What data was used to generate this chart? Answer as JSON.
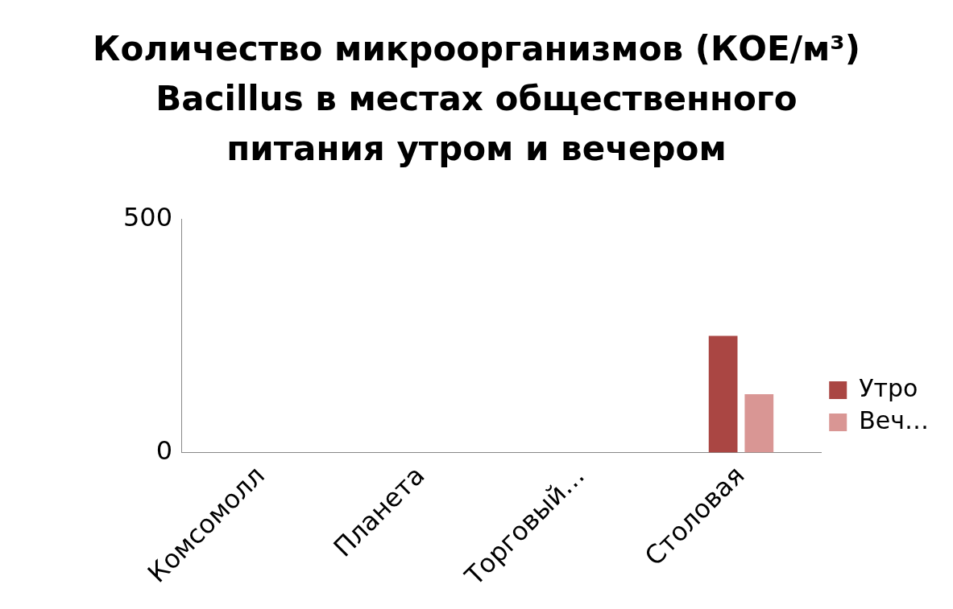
{
  "chart_data": {
    "type": "bar",
    "title": "Количество микроорганизмов (КОЕ/м³) Bacillus в местах общественного питания утром и вечером",
    "categories": [
      "Комсомолл",
      "Планета",
      "Торговый…",
      "Столовая"
    ],
    "series": [
      {
        "name": "Утро",
        "color": "#aa4643",
        "values": [
          0,
          0,
          0,
          250
        ]
      },
      {
        "name": "Веч…",
        "color": "#d99694",
        "values": [
          0,
          0,
          0,
          125
        ]
      }
    ],
    "ylim": [
      0,
      500
    ],
    "yticks": [
      0,
      500
    ],
    "grid": false,
    "legend": "right"
  }
}
